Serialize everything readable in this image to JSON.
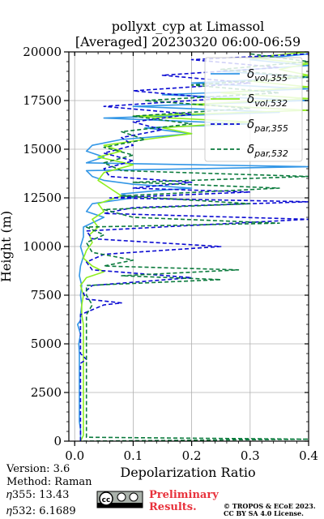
{
  "chart_data": {
    "type": "line",
    "title": "pollyxt_cyp at Limassol",
    "subtitle": "[Averaged] 20230320 06:00-06:59",
    "xlabel": "Depolarization Ratio",
    "ylabel": "Height (m)",
    "xlim": [
      -0.01,
      0.4
    ],
    "ylim": [
      0,
      20000
    ],
    "xticks": [
      "0.0",
      "0.1",
      "0.2",
      "0.3",
      "0.4"
    ],
    "yticks": [
      "0",
      "2500",
      "5000",
      "7500",
      "10000",
      "12500",
      "15000",
      "17500",
      "20000"
    ],
    "grid": true,
    "legend_position": "top-right",
    "series": [
      {
        "name": "vol,355",
        "color": "#3296e6",
        "style": "solid",
        "points": [
          [
            0.01,
            0
          ],
          [
            0.01,
            300
          ],
          [
            0.01,
            600
          ],
          [
            0.008,
            1000
          ],
          [
            0.008,
            1500
          ],
          [
            0.008,
            2000
          ],
          [
            0.008,
            2500
          ],
          [
            0.008,
            3000
          ],
          [
            0.008,
            3500
          ],
          [
            0.008,
            4000
          ],
          [
            0.008,
            4500
          ],
          [
            0.007,
            5000
          ],
          [
            0.01,
            5500
          ],
          [
            0.005,
            6000
          ],
          [
            0.01,
            6200
          ],
          [
            0.01,
            6500
          ],
          [
            0.012,
            7000
          ],
          [
            0.01,
            7500
          ],
          [
            0.012,
            8000
          ],
          [
            0.008,
            8500
          ],
          [
            0.01,
            9000
          ],
          [
            0.015,
            9500
          ],
          [
            0.01,
            10000
          ],
          [
            0.015,
            10500
          ],
          [
            0.015,
            11000
          ],
          [
            0.05,
            11500
          ],
          [
            0.02,
            11800
          ],
          [
            0.03,
            12200
          ],
          [
            0.1,
            12500
          ],
          [
            0.08,
            12700
          ],
          [
            0.15,
            12900
          ],
          [
            0.2,
            13000
          ],
          [
            0.1,
            13200
          ],
          [
            0.05,
            13400
          ],
          [
            0.03,
            13600
          ],
          [
            0.02,
            13900
          ],
          [
            0.4,
            14100
          ],
          [
            0.02,
            14300
          ],
          [
            0.05,
            14600
          ],
          [
            0.02,
            14900
          ],
          [
            0.03,
            15200
          ],
          [
            0.08,
            15500
          ],
          [
            0.2,
            15800
          ],
          [
            0.12,
            16100
          ],
          [
            0.3,
            16300
          ],
          [
            0.05,
            16600
          ],
          [
            0.35,
            16900
          ],
          [
            0.1,
            17200
          ],
          [
            0.4,
            17500
          ],
          [
            0.15,
            17800
          ],
          [
            0.4,
            18100
          ],
          [
            0.2,
            18400
          ],
          [
            0.4,
            18700
          ],
          [
            0.25,
            19000
          ],
          [
            0.4,
            19300
          ],
          [
            0.3,
            19600
          ],
          [
            0.4,
            19900
          ]
        ]
      },
      {
        "name": "vol,532",
        "color": "#90ee20",
        "style": "solid",
        "points": [
          [
            0.01,
            0
          ],
          [
            0.015,
            300
          ],
          [
            0.015,
            600
          ],
          [
            0.015,
            1000
          ],
          [
            0.015,
            1500
          ],
          [
            0.015,
            2000
          ],
          [
            0.015,
            2500
          ],
          [
            0.015,
            3000
          ],
          [
            0.015,
            3500
          ],
          [
            0.015,
            4000
          ],
          [
            0.015,
            4500
          ],
          [
            0.015,
            5000
          ],
          [
            0.015,
            5500
          ],
          [
            0.015,
            6000
          ],
          [
            0.012,
            6500
          ],
          [
            0.012,
            7000
          ],
          [
            0.015,
            7500
          ],
          [
            0.01,
            8000
          ],
          [
            0.02,
            8400
          ],
          [
            0.05,
            8700
          ],
          [
            0.03,
            9000
          ],
          [
            0.015,
            9400
          ],
          [
            0.02,
            9800
          ],
          [
            0.03,
            10200
          ],
          [
            0.025,
            10600
          ],
          [
            0.04,
            11000
          ],
          [
            0.03,
            11400
          ],
          [
            0.05,
            11800
          ],
          [
            0.04,
            12200
          ],
          [
            0.08,
            12600
          ],
          [
            0.06,
            13000
          ],
          [
            0.04,
            13400
          ],
          [
            0.05,
            13800
          ],
          [
            0.1,
            14200
          ],
          [
            0.04,
            14600
          ],
          [
            0.08,
            14900
          ],
          [
            0.05,
            15200
          ],
          [
            0.12,
            15500
          ],
          [
            0.2,
            15800
          ],
          [
            0.15,
            16100
          ],
          [
            0.3,
            16400
          ],
          [
            0.1,
            16700
          ],
          [
            0.4,
            17000
          ],
          [
            0.2,
            17300
          ],
          [
            0.4,
            17600
          ],
          [
            0.25,
            17900
          ],
          [
            0.4,
            18200
          ],
          [
            0.3,
            18500
          ],
          [
            0.4,
            18800
          ],
          [
            0.35,
            19100
          ],
          [
            0.4,
            19400
          ],
          [
            0.3,
            19700
          ],
          [
            0.4,
            20000
          ]
        ]
      },
      {
        "name": "par,355",
        "color": "#0a0ad2",
        "style": "dashed",
        "points": [
          [
            0.01,
            0
          ],
          [
            0.01,
            400
          ],
          [
            0.01,
            1000
          ],
          [
            0.01,
            2000
          ],
          [
            0.01,
            3000
          ],
          [
            0.01,
            4000
          ],
          [
            0.02,
            4200
          ],
          [
            0.01,
            4500
          ],
          [
            0.01,
            5000
          ],
          [
            0.01,
            6000
          ],
          [
            0.01,
            6500
          ],
          [
            0.05,
            7000
          ],
          [
            0.08,
            7100
          ],
          [
            0.02,
            7300
          ],
          [
            0.015,
            7600
          ],
          [
            0.03,
            8000
          ],
          [
            0.2,
            8400
          ],
          [
            0.03,
            8800
          ],
          [
            0.02,
            9200
          ],
          [
            0.05,
            9600
          ],
          [
            0.25,
            10000
          ],
          [
            0.03,
            10400
          ],
          [
            0.02,
            10800
          ],
          [
            0.4,
            11400
          ],
          [
            0.05,
            11700
          ],
          [
            0.1,
            12000
          ],
          [
            0.4,
            12300
          ],
          [
            0.06,
            12500
          ],
          [
            0.3,
            12800
          ],
          [
            0.1,
            13000
          ],
          [
            0.2,
            13300
          ],
          [
            0.06,
            13600
          ],
          [
            0.05,
            14000
          ],
          [
            0.1,
            14400
          ],
          [
            0.05,
            14800
          ],
          [
            0.1,
            15200
          ],
          [
            0.08,
            15600
          ],
          [
            0.15,
            16000
          ],
          [
            0.1,
            16400
          ],
          [
            0.2,
            16800
          ],
          [
            0.05,
            17200
          ],
          [
            0.25,
            17600
          ],
          [
            0.1,
            18000
          ],
          [
            0.3,
            18400
          ],
          [
            0.15,
            18800
          ],
          [
            0.35,
            19200
          ],
          [
            0.2,
            19600
          ],
          [
            0.4,
            19900
          ]
        ]
      },
      {
        "name": "par,532",
        "color": "#0a7a3c",
        "style": "dashed",
        "points": [
          [
            0.015,
            0
          ],
          [
            0.4,
            100
          ],
          [
            0.02,
            200
          ],
          [
            0.02,
            600
          ],
          [
            0.02,
            1000
          ],
          [
            0.02,
            2000
          ],
          [
            0.02,
            3000
          ],
          [
            0.02,
            4000
          ],
          [
            0.02,
            5000
          ],
          [
            0.02,
            5600
          ],
          [
            0.02,
            6000
          ],
          [
            0.02,
            6500
          ],
          [
            0.03,
            7000
          ],
          [
            0.02,
            7500
          ],
          [
            0.02,
            8000
          ],
          [
            0.25,
            8300
          ],
          [
            0.08,
            8500
          ],
          [
            0.28,
            8800
          ],
          [
            0.05,
            9000
          ],
          [
            0.1,
            9300
          ],
          [
            0.03,
            9700
          ],
          [
            0.02,
            10200
          ],
          [
            0.05,
            10600
          ],
          [
            0.02,
            11000
          ],
          [
            0.35,
            11200
          ],
          [
            0.1,
            11500
          ],
          [
            0.05,
            11900
          ],
          [
            0.3,
            12200
          ],
          [
            0.08,
            12600
          ],
          [
            0.35,
            13000
          ],
          [
            0.1,
            13300
          ],
          [
            0.4,
            13600
          ],
          [
            0.08,
            13900
          ],
          [
            0.05,
            14300
          ],
          [
            0.1,
            14700
          ],
          [
            0.05,
            15100
          ],
          [
            0.12,
            15500
          ],
          [
            0.08,
            15900
          ],
          [
            0.2,
            16300
          ],
          [
            0.1,
            16700
          ],
          [
            0.3,
            17100
          ],
          [
            0.12,
            17500
          ],
          [
            0.35,
            17900
          ],
          [
            0.2,
            18300
          ],
          [
            0.4,
            18700
          ],
          [
            0.25,
            19100
          ],
          [
            0.4,
            19500
          ],
          [
            0.3,
            19900
          ]
        ]
      }
    ]
  },
  "metadata": {
    "version": "Version: 3.6",
    "method": "Method: Raman",
    "eta355": "𝜂355:  13.43",
    "eta532": "𝜂532: 6.1689",
    "preliminary_line1": "Preliminary",
    "preliminary_line2": "Results.",
    "copyright_line1": "© TROPOS & ECoE 2023.",
    "copyright_line2": "CC BY SA 4.0 License."
  },
  "legend": {
    "symbol": "δ",
    "entries": [
      "vol,355",
      "vol,532",
      "par,355",
      "par,532"
    ]
  }
}
